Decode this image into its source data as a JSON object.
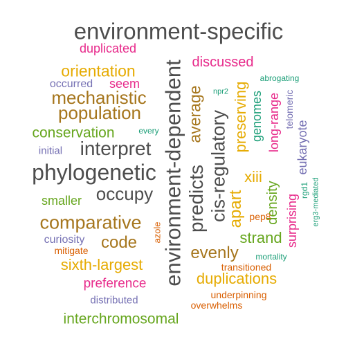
{
  "palette": {
    "gray": "#4d4d4d",
    "pink": "#e7298a",
    "orange": "#e6ab02",
    "brown": "#a6761d",
    "purple": "#7570b3",
    "teal": "#1b9e77",
    "green": "#66a61e",
    "rust": "#d95f02"
  },
  "words": [
    {
      "text": "environment-specific",
      "color": "gray"
    },
    {
      "text": "duplicated",
      "color": "pink"
    },
    {
      "text": "environment-dependent",
      "color": "gray"
    },
    {
      "text": "discussed",
      "color": "pink"
    },
    {
      "text": "orientation",
      "color": "orange"
    },
    {
      "text": "occurred",
      "color": "purple"
    },
    {
      "text": "seem",
      "color": "pink"
    },
    {
      "text": "mechanistic",
      "color": "brown"
    },
    {
      "text": "population",
      "color": "brown"
    },
    {
      "text": "abrogating",
      "color": "teal"
    },
    {
      "text": "npr2",
      "color": "teal"
    },
    {
      "text": "average",
      "color": "brown"
    },
    {
      "text": "preserving",
      "color": "orange"
    },
    {
      "text": "genomes",
      "color": "teal"
    },
    {
      "text": "long-range",
      "color": "pink"
    },
    {
      "text": "telomeric",
      "color": "purple"
    },
    {
      "text": "conservation",
      "color": "green"
    },
    {
      "text": "every",
      "color": "teal"
    },
    {
      "text": "initial",
      "color": "purple"
    },
    {
      "text": "interpret",
      "color": "gray"
    },
    {
      "text": "cis-regulatory",
      "color": "gray"
    },
    {
      "text": "eukaryote",
      "color": "purple"
    },
    {
      "text": "phylogenetic",
      "color": "gray"
    },
    {
      "text": "predicts",
      "color": "gray"
    },
    {
      "text": "xiii",
      "color": "orange"
    },
    {
      "text": "occupy",
      "color": "gray"
    },
    {
      "text": "smaller",
      "color": "green"
    },
    {
      "text": "apart",
      "color": "orange"
    },
    {
      "text": "density",
      "color": "green"
    },
    {
      "text": "rgd1",
      "color": "teal"
    },
    {
      "text": "erg3-mediated",
      "color": "teal"
    },
    {
      "text": "pep8",
      "color": "rust"
    },
    {
      "text": "surprising",
      "color": "pink"
    },
    {
      "text": "comparative",
      "color": "brown"
    },
    {
      "text": "azole",
      "color": "rust"
    },
    {
      "text": "strand",
      "color": "green"
    },
    {
      "text": "curiosity",
      "color": "purple"
    },
    {
      "text": "code",
      "color": "brown"
    },
    {
      "text": "mitigate",
      "color": "rust"
    },
    {
      "text": "evenly",
      "color": "brown"
    },
    {
      "text": "mortality",
      "color": "teal"
    },
    {
      "text": "sixth-largest",
      "color": "orange"
    },
    {
      "text": "transitioned",
      "color": "rust"
    },
    {
      "text": "duplications",
      "color": "orange"
    },
    {
      "text": "preference",
      "color": "pink"
    },
    {
      "text": "distributed",
      "color": "purple"
    },
    {
      "text": "underpinning",
      "color": "rust"
    },
    {
      "text": "overwhelms",
      "color": "rust"
    },
    {
      "text": "interchromosomal",
      "color": "green"
    }
  ]
}
